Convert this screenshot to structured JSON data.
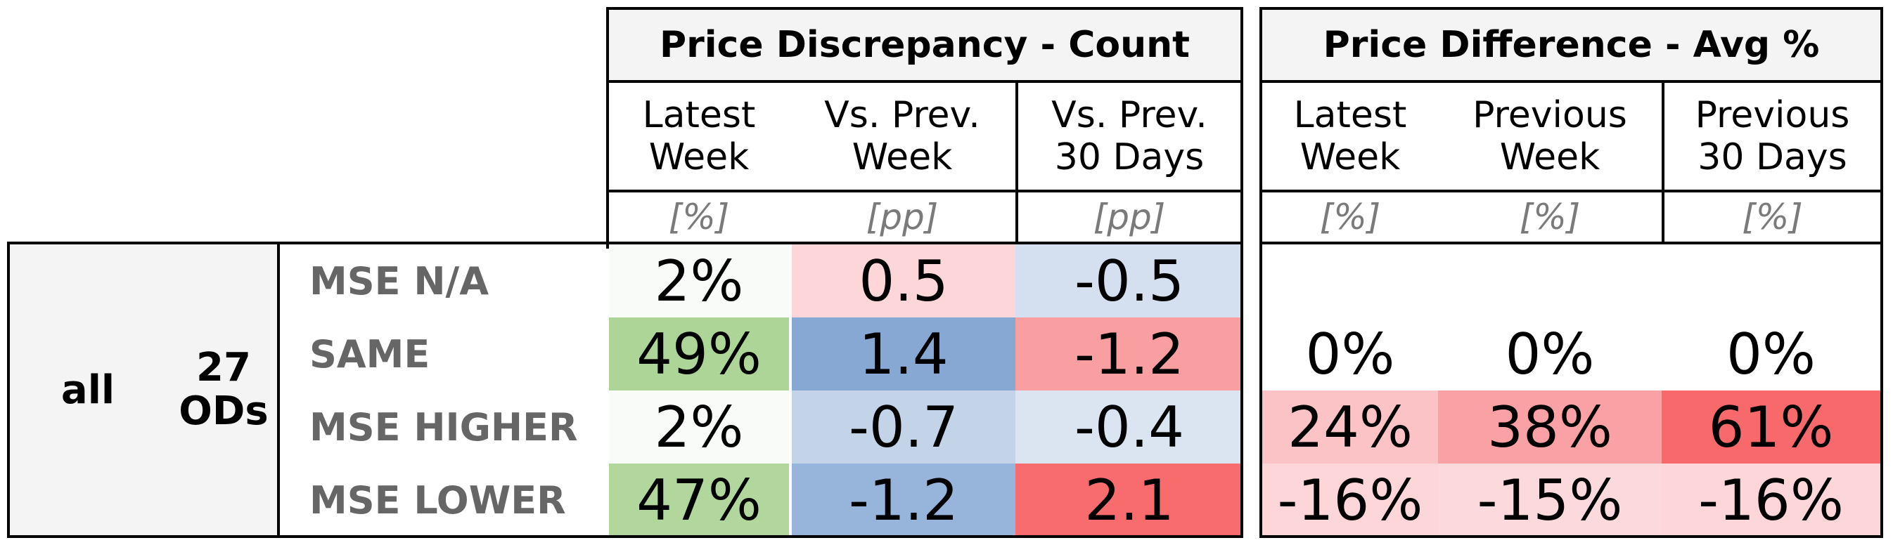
{
  "groups": {
    "discrepancy": {
      "title": "Price Discrepancy - Count",
      "columns": [
        {
          "header": "Latest\nWeek",
          "unit": "[%]"
        },
        {
          "header": "Vs. Prev.\nWeek",
          "unit": "[pp]"
        },
        {
          "header": "Vs. Prev.\n30 Days",
          "unit": "[pp]"
        }
      ]
    },
    "difference": {
      "title": "Price Difference - Avg %",
      "columns": [
        {
          "header": "Latest\nWeek",
          "unit": "[%]"
        },
        {
          "header": "Previous\nWeek",
          "unit": "[%]"
        },
        {
          "header": "Previous\n30 Days",
          "unit": "[%]"
        }
      ]
    }
  },
  "segment": {
    "label": "all",
    "ods_label": "27\nODs"
  },
  "rows": [
    {
      "label": "MSE N/A",
      "discrepancy": [
        {
          "value": "2%",
          "color": "#f8fbf8"
        },
        {
          "value": "0.5",
          "color": "#fcd6d9"
        },
        {
          "value": "-0.5",
          "color": "#d4e0ef"
        }
      ],
      "difference": [
        {
          "value": "",
          "color": "#ffffff"
        },
        {
          "value": "",
          "color": "#ffffff"
        },
        {
          "value": "",
          "color": "#ffffff"
        }
      ]
    },
    {
      "label": "SAME",
      "discrepancy": [
        {
          "value": "49%",
          "color": "#add598"
        },
        {
          "value": "1.4",
          "color": "#87a8d3"
        },
        {
          "value": "-1.2",
          "color": "#f99ea1"
        }
      ],
      "difference": [
        {
          "value": "0%",
          "color": "#ffffff"
        },
        {
          "value": "0%",
          "color": "#ffffff"
        },
        {
          "value": "0%",
          "color": "#ffffff"
        }
      ]
    },
    {
      "label": "MSE HIGHER",
      "discrepancy": [
        {
          "value": "2%",
          "color": "#f8fbf8"
        },
        {
          "value": "-0.7",
          "color": "#c3d4e9"
        },
        {
          "value": "-0.4",
          "color": "#dbe5f2"
        }
      ],
      "difference": [
        {
          "value": "24%",
          "color": "#fcc3c6"
        },
        {
          "value": "38%",
          "color": "#f9a1a4"
        },
        {
          "value": "61%",
          "color": "#f8696b"
        }
      ]
    },
    {
      "label": "MSE LOWER",
      "discrepancy": [
        {
          "value": "47%",
          "color": "#b1d79c"
        },
        {
          "value": "-1.2",
          "color": "#97b4da"
        },
        {
          "value": "2.1",
          "color": "#f86c6e"
        }
      ],
      "difference": [
        {
          "value": "-16%",
          "color": "#fcd6d9"
        },
        {
          "value": "-15%",
          "color": "#fcd9dc"
        },
        {
          "value": "-16%",
          "color": "#fcd6d9"
        }
      ]
    }
  ]
}
